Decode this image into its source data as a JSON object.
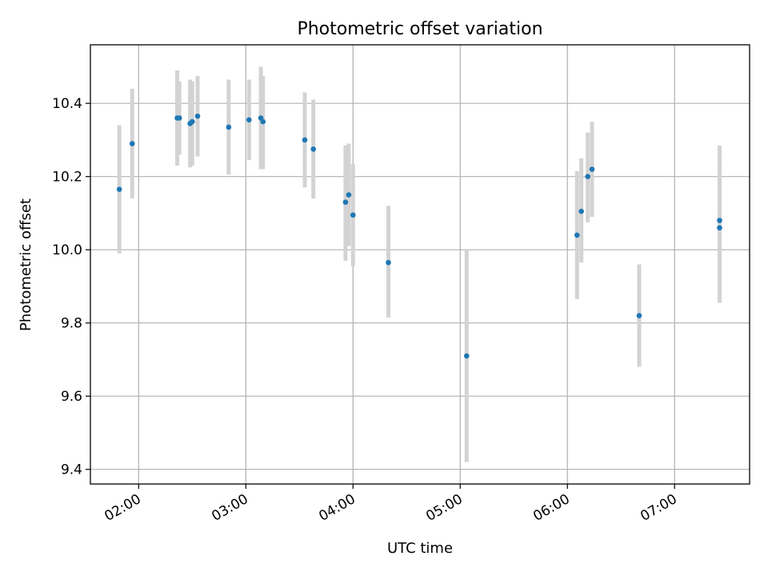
{
  "chart_data": {
    "type": "scatter",
    "title": "Photometric offset variation",
    "xlabel": "UTC time",
    "ylabel": "Photometric offset",
    "x_unit": "hours UTC",
    "xlim": [
      1.55,
      7.7
    ],
    "ylim": [
      9.36,
      10.56
    ],
    "grid": true,
    "x_ticks": [
      {
        "value": 2,
        "label": "02:00"
      },
      {
        "value": 3,
        "label": "03:00"
      },
      {
        "value": 4,
        "label": "04:00"
      },
      {
        "value": 5,
        "label": "05:00"
      },
      {
        "value": 6,
        "label": "06:00"
      },
      {
        "value": 7,
        "label": "07:00"
      }
    ],
    "y_ticks": [
      {
        "value": 9.4,
        "label": "9.4"
      },
      {
        "value": 9.6,
        "label": "9.6"
      },
      {
        "value": 9.8,
        "label": "9.8"
      },
      {
        "value": 10.0,
        "label": "10.0"
      },
      {
        "value": 10.2,
        "label": "10.2"
      },
      {
        "value": 10.4,
        "label": "10.4"
      }
    ],
    "colors": {
      "point": "#1f77b4",
      "errorbar": "#d3d3d3",
      "grid": "#b0b0b0"
    },
    "points": [
      {
        "x": 1.82,
        "y": 10.165,
        "ylow": 9.99,
        "yhigh": 10.34
      },
      {
        "x": 1.94,
        "y": 10.29,
        "ylow": 10.14,
        "yhigh": 10.44
      },
      {
        "x": 2.36,
        "y": 10.36,
        "ylow": 10.23,
        "yhigh": 10.49
      },
      {
        "x": 2.38,
        "y": 10.36,
        "ylow": 10.26,
        "yhigh": 10.46
      },
      {
        "x": 2.48,
        "y": 10.345,
        "ylow": 10.225,
        "yhigh": 10.465
      },
      {
        "x": 2.5,
        "y": 10.35,
        "ylow": 10.23,
        "yhigh": 10.46
      },
      {
        "x": 2.55,
        "y": 10.365,
        "ylow": 10.255,
        "yhigh": 10.475
      },
      {
        "x": 2.84,
        "y": 10.335,
        "ylow": 10.205,
        "yhigh": 10.465
      },
      {
        "x": 3.03,
        "y": 10.355,
        "ylow": 10.245,
        "yhigh": 10.465
      },
      {
        "x": 3.14,
        "y": 10.36,
        "ylow": 10.22,
        "yhigh": 10.5
      },
      {
        "x": 3.16,
        "y": 10.35,
        "ylow": 10.22,
        "yhigh": 10.475
      },
      {
        "x": 3.55,
        "y": 10.3,
        "ylow": 10.17,
        "yhigh": 10.43
      },
      {
        "x": 3.63,
        "y": 10.275,
        "ylow": 10.14,
        "yhigh": 10.41
      },
      {
        "x": 3.93,
        "y": 10.13,
        "ylow": 9.97,
        "yhigh": 10.285
      },
      {
        "x": 3.96,
        "y": 10.15,
        "ylow": 10.01,
        "yhigh": 10.29
      },
      {
        "x": 4.0,
        "y": 10.095,
        "ylow": 9.955,
        "yhigh": 10.235
      },
      {
        "x": 4.33,
        "y": 9.965,
        "ylow": 9.815,
        "yhigh": 10.12
      },
      {
        "x": 5.06,
        "y": 9.71,
        "ylow": 9.42,
        "yhigh": 10.0
      },
      {
        "x": 6.09,
        "y": 10.04,
        "ylow": 9.865,
        "yhigh": 10.215
      },
      {
        "x": 6.13,
        "y": 10.105,
        "ylow": 9.965,
        "yhigh": 10.25
      },
      {
        "x": 6.19,
        "y": 10.2,
        "ylow": 10.075,
        "yhigh": 10.32
      },
      {
        "x": 6.23,
        "y": 10.22,
        "ylow": 10.09,
        "yhigh": 10.35
      },
      {
        "x": 6.67,
        "y": 9.82,
        "ylow": 9.68,
        "yhigh": 9.96
      },
      {
        "x": 7.42,
        "y": 10.08,
        "ylow": 9.87,
        "yhigh": 10.285
      },
      {
        "x": 7.42,
        "y": 10.06,
        "ylow": 9.855,
        "yhigh": 10.265
      }
    ]
  }
}
